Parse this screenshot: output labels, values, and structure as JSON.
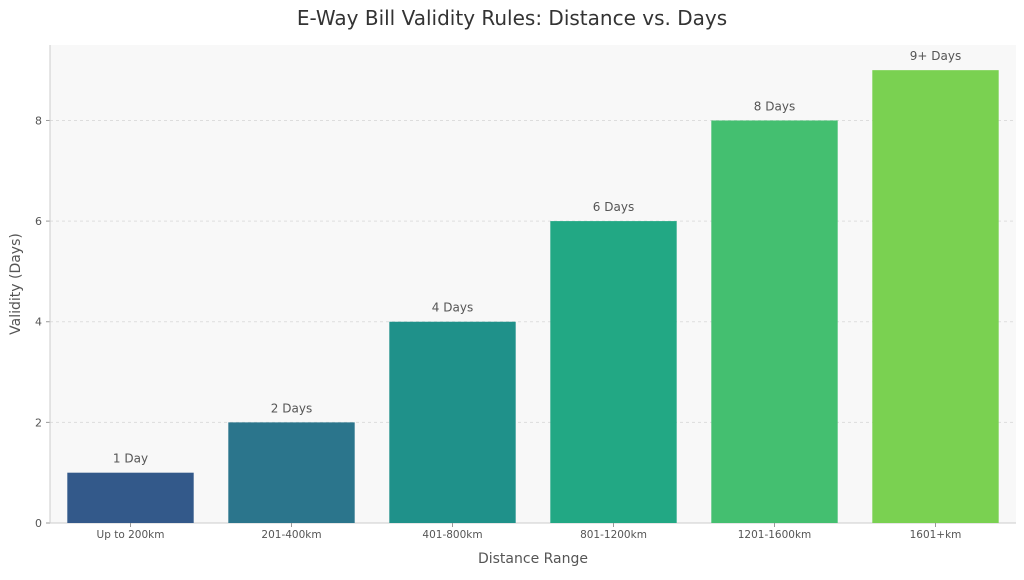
{
  "chart_data": {
    "type": "bar",
    "title": "E-Way Bill Validity Rules: Distance vs. Days",
    "xlabel": "Distance Range",
    "ylabel": "Validity (Days)",
    "categories": [
      "Up to 200km",
      "201-400km",
      "401-800km",
      "801-1200km",
      "1201-1600km",
      "1601+km"
    ],
    "values": [
      1,
      2,
      4,
      6,
      8,
      9
    ],
    "data_labels": [
      "1 Day",
      "2 Days",
      "4 Days",
      "6 Days",
      "8 Days",
      "9+ Days"
    ],
    "colors": [
      "#33598a",
      "#2b758c",
      "#1f918a",
      "#22a884",
      "#44bf70",
      "#7ad151"
    ],
    "yticks": [
      0,
      2,
      4,
      6,
      8
    ],
    "ylim": [
      0,
      9.5
    ],
    "grid": true,
    "legend": "none",
    "plot_background": "#f8f8f8"
  }
}
